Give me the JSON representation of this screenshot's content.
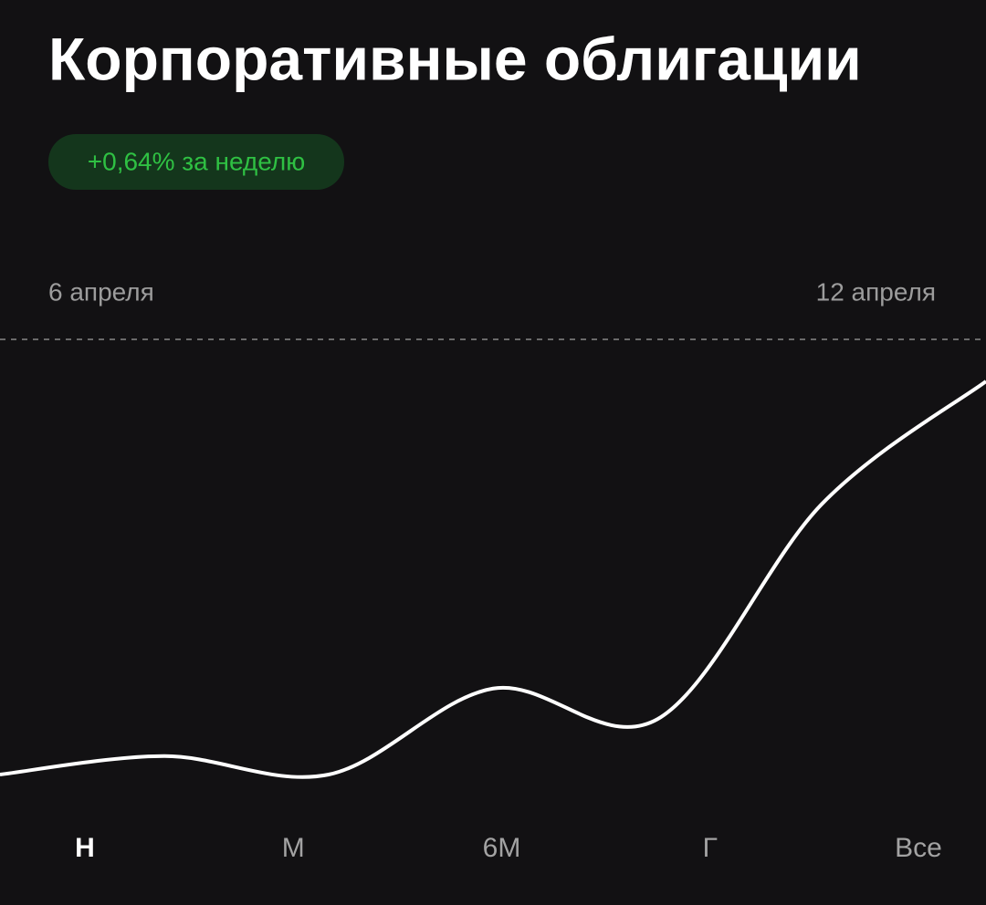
{
  "header": {
    "title": "Корпоративные облигации",
    "badge": "+0,64% за неделю"
  },
  "chart_data": {
    "type": "line",
    "categories": [
      "6 апреля",
      null,
      null,
      null,
      null,
      null,
      "12 апреля"
    ],
    "values": [
      0,
      0.03,
      0,
      0.14,
      0.09,
      0.44,
      0.64
    ],
    "color": "#ffffff"
  },
  "periods": {
    "items": [
      "Н",
      "М",
      "6М",
      "Г",
      "Все"
    ],
    "selected": 0
  }
}
